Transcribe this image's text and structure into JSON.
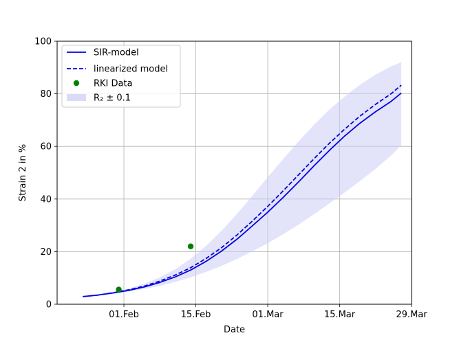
{
  "chart_data": {
    "type": "line",
    "xlabel": "Date",
    "ylabel": "Strain 2 in %",
    "ylim": [
      0,
      100
    ],
    "xlim": [
      "2021-01-19",
      "2021-03-29"
    ],
    "x_ticks": [
      {
        "date": "2021-02-01",
        "label": "01.Feb"
      },
      {
        "date": "2021-02-15",
        "label": "15.Feb"
      },
      {
        "date": "2021-03-01",
        "label": "01.Mar"
      },
      {
        "date": "2021-03-15",
        "label": "15.Mar"
      },
      {
        "date": "2021-03-29",
        "label": "29.Mar"
      }
    ],
    "y_ticks": [
      0,
      20,
      40,
      60,
      80,
      100
    ],
    "grid": true,
    "legend_position": "top-left",
    "series": [
      {
        "name": "SIR-model",
        "style": "solid",
        "color": "#0000dd",
        "points": [
          {
            "x": "2021-01-24",
            "y": 2.9
          },
          {
            "x": "2021-01-27",
            "y": 3.5
          },
          {
            "x": "2021-01-30",
            "y": 4.3
          },
          {
            "x": "2021-02-02",
            "y": 5.3
          },
          {
            "x": "2021-02-05",
            "y": 6.6
          },
          {
            "x": "2021-02-08",
            "y": 8.3
          },
          {
            "x": "2021-02-11",
            "y": 10.4
          },
          {
            "x": "2021-02-14",
            "y": 13.0
          },
          {
            "x": "2021-02-17",
            "y": 16.3
          },
          {
            "x": "2021-02-20",
            "y": 20.2
          },
          {
            "x": "2021-02-23",
            "y": 24.7
          },
          {
            "x": "2021-02-26",
            "y": 29.8
          },
          {
            "x": "2021-03-01",
            "y": 35.0
          },
          {
            "x": "2021-03-04",
            "y": 40.6
          },
          {
            "x": "2021-03-07",
            "y": 46.5
          },
          {
            "x": "2021-03-10",
            "y": 52.6
          },
          {
            "x": "2021-03-13",
            "y": 58.5
          },
          {
            "x": "2021-03-16",
            "y": 64.0
          },
          {
            "x": "2021-03-19",
            "y": 68.9
          },
          {
            "x": "2021-03-22",
            "y": 73.2
          },
          {
            "x": "2021-03-25",
            "y": 77.1
          },
          {
            "x": "2021-03-27",
            "y": 80.3
          }
        ]
      },
      {
        "name": "linearized model",
        "style": "dashed",
        "color": "#0000dd",
        "points": [
          {
            "x": "2021-01-24",
            "y": 2.9
          },
          {
            "x": "2021-01-27",
            "y": 3.5
          },
          {
            "x": "2021-01-30",
            "y": 4.4
          },
          {
            "x": "2021-02-02",
            "y": 5.5
          },
          {
            "x": "2021-02-05",
            "y": 6.9
          },
          {
            "x": "2021-02-08",
            "y": 8.8
          },
          {
            "x": "2021-02-11",
            "y": 11.1
          },
          {
            "x": "2021-02-14",
            "y": 13.9
          },
          {
            "x": "2021-02-17",
            "y": 17.4
          },
          {
            "x": "2021-02-20",
            "y": 21.5
          },
          {
            "x": "2021-02-23",
            "y": 26.3
          },
          {
            "x": "2021-02-26",
            "y": 31.6
          },
          {
            "x": "2021-03-01",
            "y": 37.2
          },
          {
            "x": "2021-03-04",
            "y": 43.1
          },
          {
            "x": "2021-03-07",
            "y": 49.2
          },
          {
            "x": "2021-03-10",
            "y": 55.3
          },
          {
            "x": "2021-03-13",
            "y": 61.2
          },
          {
            "x": "2021-03-16",
            "y": 66.6
          },
          {
            "x": "2021-03-19",
            "y": 71.6
          },
          {
            "x": "2021-03-22",
            "y": 76.0
          },
          {
            "x": "2021-03-25",
            "y": 80.0
          },
          {
            "x": "2021-03-27",
            "y": 83.3
          }
        ]
      }
    ],
    "band": {
      "name": "R₂ ± 0.1",
      "color": "#ccccf5",
      "points": [
        {
          "x": "2021-01-24",
          "lower": 2.9,
          "upper": 2.9
        },
        {
          "x": "2021-01-27",
          "lower": 3.4,
          "upper": 3.6
        },
        {
          "x": "2021-01-30",
          "lower": 4.1,
          "upper": 4.6
        },
        {
          "x": "2021-02-02",
          "lower": 4.8,
          "upper": 6.0
        },
        {
          "x": "2021-02-05",
          "lower": 5.8,
          "upper": 7.8
        },
        {
          "x": "2021-02-08",
          "lower": 7.0,
          "upper": 10.2
        },
        {
          "x": "2021-02-11",
          "lower": 8.5,
          "upper": 13.3
        },
        {
          "x": "2021-02-14",
          "lower": 10.2,
          "upper": 17.3
        },
        {
          "x": "2021-02-17",
          "lower": 12.3,
          "upper": 22.2
        },
        {
          "x": "2021-02-20",
          "lower": 14.6,
          "upper": 27.9
        },
        {
          "x": "2021-02-23",
          "lower": 17.2,
          "upper": 34.3
        },
        {
          "x": "2021-02-26",
          "lower": 20.1,
          "upper": 41.2
        },
        {
          "x": "2021-03-01",
          "lower": 23.2,
          "upper": 48.3
        },
        {
          "x": "2021-03-04",
          "lower": 26.6,
          "upper": 55.2
        },
        {
          "x": "2021-03-07",
          "lower": 30.3,
          "upper": 61.9
        },
        {
          "x": "2021-03-10",
          "lower": 34.2,
          "upper": 68.2
        },
        {
          "x": "2021-03-13",
          "lower": 38.3,
          "upper": 74.0
        },
        {
          "x": "2021-03-16",
          "lower": 42.5,
          "upper": 79.0
        },
        {
          "x": "2021-03-19",
          "lower": 46.9,
          "upper": 83.5
        },
        {
          "x": "2021-03-22",
          "lower": 51.5,
          "upper": 87.3
        },
        {
          "x": "2021-03-25",
          "lower": 56.5,
          "upper": 90.4
        },
        {
          "x": "2021-03-27",
          "lower": 60.5,
          "upper": 92.0
        }
      ]
    },
    "scatter": {
      "name": "RKI Data",
      "color": "#008000",
      "points": [
        {
          "x": "2021-01-31",
          "y": 5.6
        },
        {
          "x": "2021-02-14",
          "y": 22.0
        }
      ]
    },
    "legend": [
      {
        "label": "SIR-model",
        "kind": "solid-line"
      },
      {
        "label": "linearized model",
        "kind": "dashed-line"
      },
      {
        "label": "RKI Data",
        "kind": "marker"
      },
      {
        "label": "R₂ ± 0.1",
        "kind": "band"
      }
    ]
  }
}
